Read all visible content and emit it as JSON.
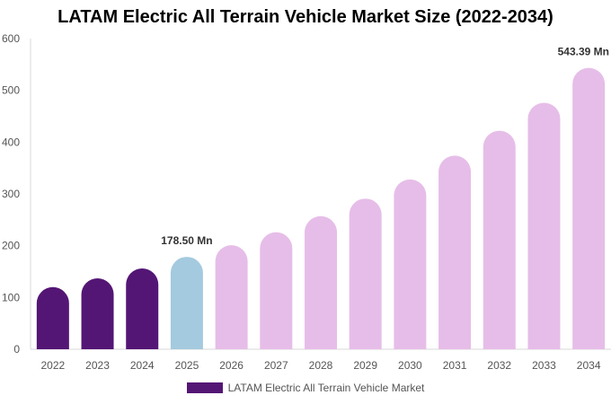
{
  "chart_data": {
    "type": "bar",
    "title": "LATAM Electric All Terrain Vehicle Market Size (2022-2034)",
    "xlabel": "",
    "ylabel": "",
    "categories": [
      "2022",
      "2023",
      "2024",
      "2025",
      "2026",
      "2027",
      "2028",
      "2029",
      "2030",
      "2031",
      "2032",
      "2033",
      "2034"
    ],
    "series": [
      {
        "name": "LATAM Electric All Terrain Vehicle Market",
        "values": [
          120,
          137,
          156,
          178.5,
          201,
          226,
          257,
          291,
          328,
          374,
          422,
          476,
          543.39
        ]
      }
    ],
    "ylim": [
      0,
      600
    ],
    "yticks": [
      0,
      100,
      200,
      300,
      400,
      500,
      600
    ],
    "grid": false,
    "legend_position": "bottom",
    "annotations": [
      {
        "category": "2025",
        "text": "178.50 Mn"
      },
      {
        "category": "2034",
        "text": "543.39 Mn"
      }
    ],
    "colors": {
      "historical": "#541675",
      "current": "#a4cadf",
      "forecast": "#e6bde8",
      "axis": "#d9d9d9"
    },
    "bar_color_groups": [
      "historical",
      "historical",
      "historical",
      "current",
      "forecast",
      "forecast",
      "forecast",
      "forecast",
      "forecast",
      "forecast",
      "forecast",
      "forecast",
      "forecast"
    ]
  }
}
